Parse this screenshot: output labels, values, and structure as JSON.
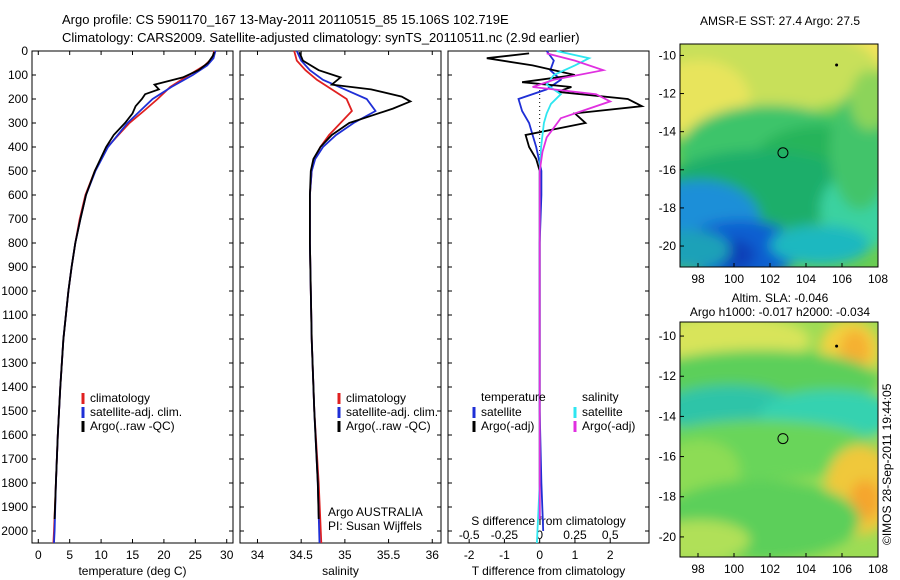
{
  "header": {
    "line1": "Argo profile: CS 5901170_167 13-May-2011 20110515_85 15.106S 102.719E",
    "line2": "Climatology: CARS2009. Satellite-adjusted climatology: synTS_20110511.nc (2.9d earlier)"
  },
  "colors": {
    "climatology": "#e02020",
    "satellite": "#1f2fd6",
    "argo": "#000000",
    "sal_satellite": "#2ee6f0",
    "sal_argo": "#e030e0"
  },
  "legend_main": {
    "climatology": "climatology",
    "satellite": "satellite-adj. clim.",
    "argo": "Argo(..raw -QC)"
  },
  "legend_diff": {
    "temperature_header": "temperature",
    "salinity_header": "salinity",
    "satellite": "satellite",
    "argo": "Argo(-adj)"
  },
  "annotations": {
    "float_owner": "Argo AUSTRALIA",
    "pi": "PI: Susan Wijffels",
    "credit": "©IMOS 28-Sep-2011 19:44:05"
  },
  "maps": {
    "sst_title": "AMSR-E SST: 27.4 Argo: 27.5",
    "sla_title1": "Altim. SLA: -0.046",
    "sla_title2": "Argo h1000: -0.017 h2000: -0.034",
    "y_ticks": [
      "-10",
      "-12",
      "-14",
      "-16",
      "-18",
      "-20"
    ],
    "x_ticks": [
      "98",
      "100",
      "102",
      "104",
      "106",
      "108"
    ],
    "profile_lat": -15.106,
    "profile_lon": 102.719
  },
  "chart_data": [
    {
      "type": "line",
      "panel": "temperature",
      "xlabel": "temperature (deg C)",
      "ylabel": "",
      "xlim": [
        -1,
        31
      ],
      "ylim": [
        2050,
        0
      ],
      "x_ticks": [
        0,
        5,
        10,
        15,
        20,
        25,
        30
      ],
      "y_ticks": [
        0,
        100,
        200,
        300,
        400,
        500,
        600,
        700,
        800,
        900,
        1000,
        1100,
        1200,
        1300,
        1400,
        1500,
        1600,
        1700,
        1800,
        1900,
        2000
      ],
      "series": [
        {
          "name": "climatology",
          "depth": [
            0,
            30,
            60,
            100,
            150,
            200,
            250,
            300,
            400,
            500,
            600,
            700,
            800,
            900,
            1000,
            1200,
            1400,
            1600,
            1800,
            2000,
            2050
          ],
          "values": [
            28.0,
            27.7,
            26.5,
            24.0,
            21.0,
            19.0,
            16.8,
            14.5,
            11.0,
            9.0,
            7.5,
            6.6,
            5.9,
            5.3,
            4.8,
            4.0,
            3.5,
            3.1,
            2.8,
            2.5,
            2.4
          ]
        },
        {
          "name": "satellite-adj. clim.",
          "depth": [
            0,
            30,
            60,
            100,
            150,
            200,
            250,
            300,
            400,
            500,
            600,
            700,
            800,
            900,
            1000,
            1200,
            1400,
            1600,
            1800,
            2000,
            2050
          ],
          "values": [
            28.2,
            27.9,
            26.9,
            24.6,
            21.2,
            18.2,
            16.2,
            14.2,
            11.1,
            9.1,
            7.6,
            6.7,
            5.9,
            5.3,
            4.8,
            4.0,
            3.5,
            3.1,
            2.8,
            2.6,
            2.5
          ]
        },
        {
          "name": "Argo(..raw -QC)",
          "depth": [
            5,
            20,
            50,
            80,
            110,
            140,
            160,
            180,
            200,
            230,
            260,
            300,
            350,
            400,
            500,
            600,
            700,
            800,
            900,
            1000,
            1200,
            1400,
            1600,
            1800,
            1950
          ],
          "values": [
            28.0,
            27.8,
            27.0,
            25.5,
            23.0,
            18.5,
            19.2,
            17.0,
            16.5,
            15.5,
            15.0,
            13.8,
            12.0,
            10.8,
            9.0,
            7.6,
            6.7,
            5.9,
            5.3,
            4.8,
            4.0,
            3.5,
            3.1,
            2.8,
            2.6
          ]
        }
      ]
    },
    {
      "type": "line",
      "panel": "salinity",
      "xlabel": "salinity",
      "ylabel": "",
      "xlim": [
        33.8,
        36.1
      ],
      "ylim": [
        2050,
        0
      ],
      "x_ticks": [
        34,
        34.5,
        35,
        35.5,
        36
      ],
      "series": [
        {
          "name": "climatology",
          "depth": [
            0,
            40,
            80,
            120,
            160,
            200,
            250,
            300,
            350,
            400,
            450,
            500,
            600,
            800,
            1000,
            1200,
            1500,
            1800,
            2050
          ],
          "values": [
            34.42,
            34.45,
            34.55,
            34.68,
            34.85,
            35.02,
            35.08,
            34.95,
            34.82,
            34.72,
            34.65,
            34.62,
            34.6,
            34.6,
            34.61,
            34.62,
            34.65,
            34.7,
            34.73
          ]
        },
        {
          "name": "satellite-adj. clim.",
          "depth": [
            0,
            40,
            80,
            120,
            160,
            200,
            250,
            300,
            350,
            400,
            450,
            500,
            600,
            800,
            1000,
            1200,
            1500,
            1800,
            2050
          ],
          "values": [
            34.45,
            34.5,
            34.6,
            34.75,
            35.0,
            35.25,
            35.35,
            35.1,
            34.9,
            34.75,
            34.66,
            34.62,
            34.6,
            34.6,
            34.61,
            34.62,
            34.65,
            34.69,
            34.71
          ]
        },
        {
          "name": "Argo(..raw -QC)",
          "depth": [
            5,
            40,
            80,
            110,
            140,
            160,
            190,
            210,
            240,
            270,
            300,
            350,
            400,
            450,
            500,
            600,
            800,
            1000,
            1200,
            1500,
            1800,
            1950
          ],
          "values": [
            34.48,
            34.52,
            34.7,
            34.95,
            34.85,
            35.3,
            35.65,
            35.75,
            35.55,
            35.3,
            35.05,
            34.85,
            34.72,
            34.64,
            34.61,
            34.6,
            34.6,
            34.61,
            34.62,
            34.65,
            34.69,
            34.7
          ]
        }
      ]
    },
    {
      "type": "line",
      "panel": "differences",
      "xlabel": "T difference from climatology",
      "x2label": "S difference from climatology",
      "ylabel": "",
      "xlim": [
        -2.6,
        3.1
      ],
      "ylim": [
        2050,
        0
      ],
      "x_ticks": [
        -2,
        -1,
        0,
        1,
        2
      ],
      "x2_ticks": [
        "-0.5",
        "-0.25",
        "0",
        "0.25",
        "0.5"
      ],
      "series": [
        {
          "name": "temperature satellite",
          "depth": [
            0,
            40,
            80,
            120,
            160,
            200,
            250,
            300,
            350,
            400,
            500,
            600,
            800,
            1000,
            1200,
            1500,
            1800,
            2000
          ],
          "values": [
            0.2,
            0.4,
            0.3,
            0.6,
            0.2,
            -0.6,
            -0.5,
            -0.3,
            -0.2,
            -0.1,
            0.05,
            0.05,
            0.0,
            0.0,
            0.0,
            0.0,
            0.05,
            0.1
          ]
        },
        {
          "name": "temperature Argo(-adj)",
          "depth": [
            10,
            30,
            60,
            100,
            130,
            150,
            170,
            200,
            230,
            260,
            300,
            350,
            400,
            450,
            500,
            600,
            800,
            1000,
            1400,
            1800,
            1950
          ],
          "values": [
            -0.3,
            -1.5,
            -0.2,
            1.0,
            -0.5,
            0.9,
            0.5,
            2.5,
            2.9,
            1.0,
            1.3,
            -0.4,
            -0.3,
            -0.1,
            0.0,
            0.0,
            0.0,
            0.0,
            0.0,
            0.0,
            0.0
          ]
        },
        {
          "name": "salinity satellite",
          "depth": [
            0,
            30,
            60,
            100,
            140,
            180,
            220,
            260,
            300,
            350,
            400,
            500,
            700,
            1000,
            1400,
            1800,
            2050
          ],
          "values": [
            0.12,
            0.35,
            0.25,
            0.1,
            0.05,
            0.15,
            0.08,
            0.05,
            0.03,
            0.02,
            0.01,
            0.0,
            0.0,
            0.0,
            0.0,
            0.0,
            -0.02
          ]
        },
        {
          "name": "salinity Argo(-adj)",
          "depth": [
            10,
            40,
            80,
            120,
            150,
            180,
            210,
            250,
            280,
            320,
            360,
            420,
            500,
            600,
            800,
            1000,
            1400,
            1800,
            1950
          ],
          "values": [
            0.05,
            0.25,
            0.45,
            0.1,
            -0.05,
            0.4,
            0.5,
            0.3,
            0.15,
            0.1,
            0.05,
            0.02,
            0.0,
            0.0,
            0.0,
            0.0,
            0.0,
            0.0,
            0.0
          ]
        }
      ]
    }
  ]
}
